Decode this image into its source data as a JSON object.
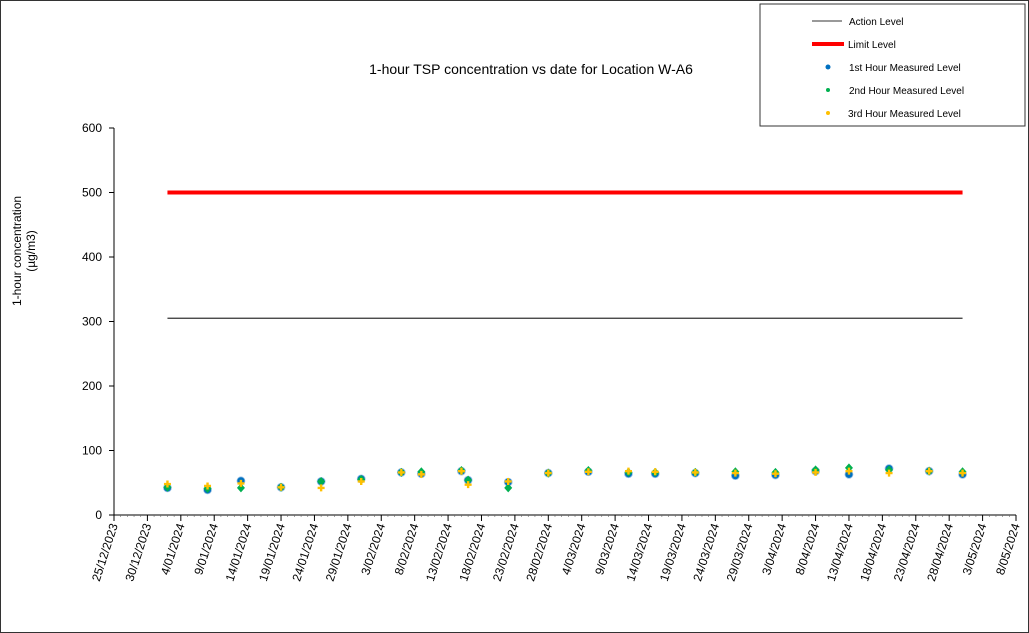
{
  "chart_data": {
    "type": "scatter",
    "title": "1-hour TSP concentration vs date for Location  W-A6",
    "xlabel": "",
    "ylabel": "1-hour concentration (µg/m3)",
    "ylabel_lines": [
      "1-hour concentration",
      "(µg/m3)"
    ],
    "ylim": [
      0,
      600
    ],
    "yticks": [
      0,
      100,
      200,
      300,
      400,
      500,
      600
    ],
    "xlim": [
      "25/12/2023",
      "8/05/2024"
    ],
    "xticks": [
      "25/12/2023",
      "30/12/2023",
      "4/01/2024",
      "9/01/2024",
      "14/01/2024",
      "19/01/2024",
      "24/01/2024",
      "29/01/2024",
      "3/02/2024",
      "8/02/2024",
      "13/02/2024",
      "18/02/2024",
      "23/02/2024",
      "28/02/2024",
      "4/03/2024",
      "9/03/2024",
      "14/03/2024",
      "19/03/2024",
      "24/03/2024",
      "29/03/2024",
      "3/04/2024",
      "8/04/2024",
      "13/04/2024",
      "18/04/2024",
      "23/04/2024",
      "28/04/2024",
      "3/05/2024",
      "8/05/2024"
    ],
    "grid": false,
    "legend_position": "top-right",
    "x": [
      "2/01/2024",
      "8/01/2024",
      "13/01/2024",
      "19/01/2024",
      "25/01/2024",
      "31/01/2024",
      "6/02/2024",
      "9/02/2024",
      "15/02/2024",
      "16/02/2024",
      "22/02/2024",
      "28/02/2024",
      "5/03/2024",
      "11/03/2024",
      "15/03/2024",
      "21/03/2024",
      "27/03/2024",
      "2/04/2024",
      "8/04/2024",
      "13/04/2024",
      "19/04/2024",
      "25/04/2024",
      "30/04/2024"
    ],
    "series": [
      {
        "name": "Action Level",
        "kind": "line",
        "color": "#333333",
        "x": [
          "2/01/2024",
          "30/04/2024"
        ],
        "values": [
          305,
          305
        ]
      },
      {
        "name": "Limit Level",
        "kind": "line",
        "color": "#ff0000",
        "x": [
          "2/01/2024",
          "30/04/2024"
        ],
        "values": [
          500,
          500
        ]
      },
      {
        "name": "1st Hour Measured Level",
        "kind": "marker",
        "color": "#0070c0",
        "values": [
          42,
          39,
          53,
          43,
          52,
          56,
          66,
          64,
          68,
          54,
          51,
          65,
          67,
          64,
          64,
          65,
          61,
          62,
          68,
          63,
          72,
          68,
          63
        ]
      },
      {
        "name": "2nd Hour Measured Level",
        "kind": "marker",
        "color": "#00b050",
        "values": [
          43,
          41,
          42,
          43,
          52,
          55,
          66,
          67,
          69,
          54,
          42,
          65,
          69,
          66,
          66,
          66,
          67,
          66,
          70,
          73,
          70,
          68,
          67
        ]
      },
      {
        "name": "3rd Hour Measured Level",
        "kind": "marker",
        "color": "#ffc000",
        "values": [
          48,
          45,
          49,
          43,
          42,
          52,
          66,
          63,
          68,
          47,
          52,
          65,
          67,
          68,
          67,
          66,
          65,
          64,
          66,
          68,
          65,
          68,
          65
        ]
      }
    ]
  }
}
